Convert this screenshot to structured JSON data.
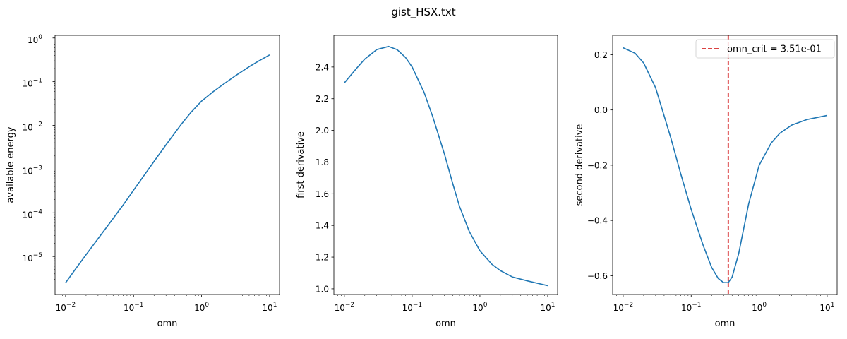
{
  "figure_title": "gist_HSX.txt",
  "colors": {
    "series": "#1f77b4",
    "critical": "#d62728",
    "axes": "#000000"
  },
  "chart_data": [
    {
      "type": "line",
      "xlabel": "omn",
      "ylabel": "available energy",
      "xscale": "log",
      "yscale": "log",
      "xlim": [
        0.007,
        14
      ],
      "ylim": [
        1.35e-06,
        1.15
      ],
      "xticks": [
        0.01,
        0.1,
        1,
        10
      ],
      "xtick_labels": [
        [
          "10",
          "−2"
        ],
        [
          "10",
          "−1"
        ],
        [
          "10",
          "0"
        ],
        [
          "10",
          "1"
        ]
      ],
      "yticks": [
        1e-05,
        0.0001,
        0.001,
        0.01,
        0.1,
        1
      ],
      "ytick_labels": [
        [
          "10",
          "−5"
        ],
        [
          "10",
          "−4"
        ],
        [
          "10",
          "−3"
        ],
        [
          "10",
          "−2"
        ],
        [
          "10",
          "−1"
        ],
        [
          "10",
          "0"
        ]
      ],
      "grid": false,
      "series": [
        {
          "x": [
            0.01,
            0.015,
            0.02,
            0.03,
            0.05,
            0.07,
            0.1,
            0.15,
            0.2,
            0.3,
            0.5,
            0.7,
            1,
            1.5,
            2,
            3,
            5,
            7,
            10
          ],
          "y": [
            2.5e-06,
            6e-06,
            1.1e-05,
            2.55e-05,
            7.4e-05,
            0.00015,
            0.00033,
            0.0008,
            0.0015,
            0.0036,
            0.0105,
            0.02,
            0.036,
            0.06,
            0.083,
            0.13,
            0.22,
            0.3,
            0.41
          ]
        }
      ]
    },
    {
      "type": "line",
      "xlabel": "omn",
      "ylabel": "first derivative",
      "xscale": "log",
      "yscale": "linear",
      "xlim": [
        0.007,
        14
      ],
      "ylim": [
        0.964,
        2.6
      ],
      "xticks": [
        0.01,
        0.1,
        1,
        10
      ],
      "xtick_labels": [
        [
          "10",
          "−2"
        ],
        [
          "10",
          "−1"
        ],
        [
          "10",
          "0"
        ],
        [
          "10",
          "1"
        ]
      ],
      "yticks": [
        1.0,
        1.2,
        1.4,
        1.6,
        1.8,
        2.0,
        2.2,
        2.4
      ],
      "ytick_labels": [
        "1.0",
        "1.2",
        "1.4",
        "1.6",
        "1.8",
        "2.0",
        "2.2",
        "2.4"
      ],
      "grid": false,
      "series": [
        {
          "x": [
            0.01,
            0.015,
            0.02,
            0.03,
            0.045,
            0.06,
            0.08,
            0.1,
            0.15,
            0.2,
            0.3,
            0.4,
            0.5,
            0.7,
            1,
            1.5,
            2,
            3,
            5,
            10
          ],
          "y": [
            2.3,
            2.39,
            2.45,
            2.51,
            2.53,
            2.51,
            2.46,
            2.4,
            2.24,
            2.09,
            1.85,
            1.66,
            1.52,
            1.36,
            1.24,
            1.155,
            1.115,
            1.075,
            1.05,
            1.02
          ]
        }
      ]
    },
    {
      "type": "line",
      "xlabel": "omn",
      "ylabel": "second derivative",
      "xscale": "log",
      "yscale": "linear",
      "xlim": [
        0.007,
        14
      ],
      "ylim": [
        -0.668,
        0.27
      ],
      "xticks": [
        0.01,
        0.1,
        1,
        10
      ],
      "xtick_labels": [
        [
          "10",
          "−2"
        ],
        [
          "10",
          "−1"
        ],
        [
          "10",
          "0"
        ],
        [
          "10",
          "1"
        ]
      ],
      "yticks": [
        -0.6,
        -0.4,
        -0.2,
        0.0,
        0.2
      ],
      "ytick_labels": [
        "−0.6",
        "−0.4",
        "−0.2",
        "0.0",
        "0.2"
      ],
      "grid": false,
      "legend_position": "upper right",
      "series": [
        {
          "x": [
            0.01,
            0.015,
            0.02,
            0.03,
            0.05,
            0.07,
            0.1,
            0.15,
            0.2,
            0.25,
            0.3,
            0.351,
            0.4,
            0.5,
            0.7,
            1,
            1.5,
            2,
            3,
            5,
            10
          ],
          "y": [
            0.225,
            0.205,
            0.17,
            0.08,
            -0.1,
            -0.23,
            -0.36,
            -0.49,
            -0.57,
            -0.61,
            -0.625,
            -0.625,
            -0.605,
            -0.52,
            -0.34,
            -0.2,
            -0.12,
            -0.085,
            -0.055,
            -0.035,
            -0.02
          ]
        }
      ],
      "vline": {
        "x": 0.351,
        "label": "omn_crit = 3.51e-01"
      }
    }
  ]
}
